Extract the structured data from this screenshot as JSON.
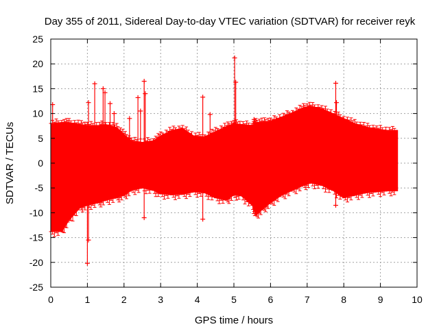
{
  "chart_data": {
    "type": "scatter",
    "title": "Day 355 of 2011, Sidereal Day-to-day VTEC variation (SDTVAR) for receiver reyk",
    "xlabel": "GPS time / hours",
    "ylabel": "SDTVAR / TECUs",
    "xlim": [
      0,
      10
    ],
    "ylim": [
      -25,
      25
    ],
    "xticks": [
      0,
      1,
      2,
      3,
      4,
      5,
      6,
      7,
      8,
      9,
      10
    ],
    "yticks": [
      -25,
      -20,
      -15,
      -10,
      -5,
      0,
      5,
      10,
      15,
      20,
      25
    ],
    "grid": true,
    "marker": "+",
    "series_color": "#ff0000",
    "envelope": {
      "x": [
        0.0,
        0.3,
        0.5,
        0.8,
        1.0,
        1.3,
        1.5,
        1.8,
        2.0,
        2.2,
        2.5,
        2.8,
        3.0,
        3.3,
        3.6,
        3.9,
        4.2,
        4.5,
        4.8,
        5.0,
        5.2,
        5.5,
        5.6,
        5.8,
        6.0,
        6.3,
        6.6,
        6.9,
        7.1,
        7.4,
        7.7,
        8.0,
        8.3,
        8.6,
        8.9,
        9.2,
        9.47
      ],
      "upper": [
        8.0,
        8.2,
        8.2,
        7.8,
        7.6,
        7.6,
        7.8,
        7.2,
        5.8,
        4.5,
        4.2,
        4.5,
        5.5,
        6.6,
        7.0,
        5.5,
        5.3,
        6.4,
        7.4,
        8.0,
        7.8,
        7.6,
        8.2,
        8.3,
        8.5,
        9.3,
        10.2,
        11.2,
        11.5,
        11.0,
        10.0,
        9.0,
        8.0,
        7.3,
        6.9,
        6.6,
        6.6
      ],
      "lower": [
        -13.8,
        -13.8,
        -11.5,
        -9.0,
        -8.5,
        -8.0,
        -7.5,
        -7.0,
        -6.5,
        -5.5,
        -5.0,
        -5.5,
        -6.2,
        -6.4,
        -6.3,
        -5.8,
        -6.0,
        -7.0,
        -7.5,
        -6.4,
        -6.6,
        -8.5,
        -10.5,
        -9.2,
        -8.0,
        -6.5,
        -5.5,
        -4.5,
        -4.0,
        -4.5,
        -5.5,
        -7.0,
        -6.5,
        -6.0,
        -5.8,
        -5.6,
        -5.6
      ]
    },
    "spikes": [
      {
        "x": 1.0,
        "y": -20.2
      },
      {
        "x": 1.03,
        "y": -15.5
      },
      {
        "x": 1.2,
        "y": 16.0
      },
      {
        "x": 1.03,
        "y": 12.2
      },
      {
        "x": 1.43,
        "y": 15.0
      },
      {
        "x": 1.48,
        "y": 14.2
      },
      {
        "x": 1.62,
        "y": 12.0
      },
      {
        "x": 1.73,
        "y": 10.0
      },
      {
        "x": 2.15,
        "y": 9.0
      },
      {
        "x": 2.38,
        "y": 13.2
      },
      {
        "x": 2.45,
        "y": 10.5
      },
      {
        "x": 2.55,
        "y": 16.5
      },
      {
        "x": 2.58,
        "y": 14.0
      },
      {
        "x": 4.15,
        "y": 13.3
      },
      {
        "x": 4.15,
        "y": -11.3
      },
      {
        "x": 4.35,
        "y": 9.8
      },
      {
        "x": 5.02,
        "y": 21.2
      },
      {
        "x": 5.05,
        "y": 16.3
      },
      {
        "x": 7.78,
        "y": 16.1
      },
      {
        "x": 7.8,
        "y": 12.2
      },
      {
        "x": 0.05,
        "y": 11.8
      },
      {
        "x": 2.55,
        "y": -11.0
      },
      {
        "x": 5.55,
        "y": 8.8
      },
      {
        "x": 7.78,
        "y": -8.5
      }
    ]
  }
}
